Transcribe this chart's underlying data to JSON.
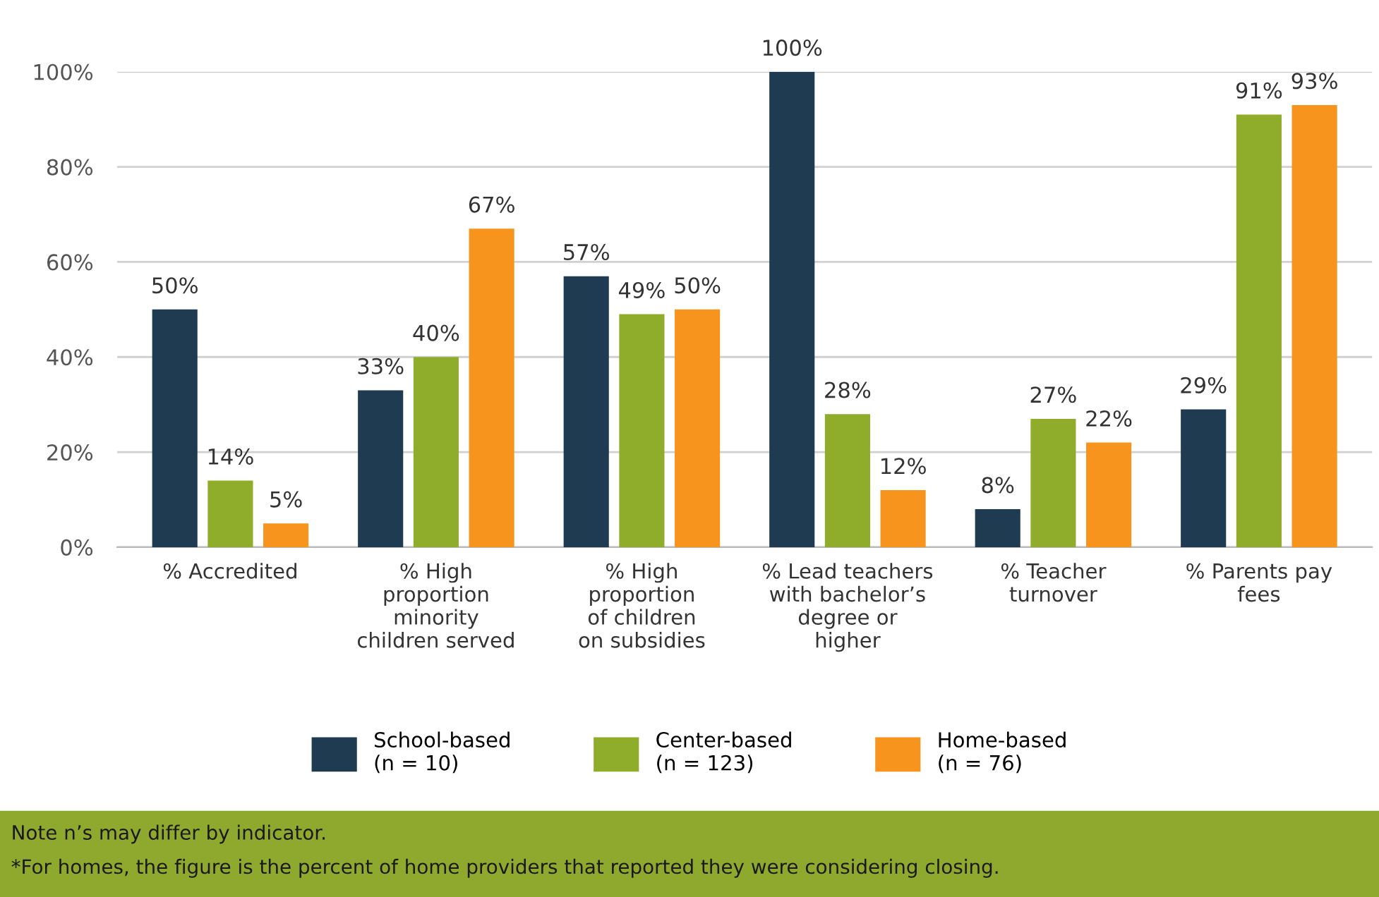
{
  "chart_data": {
    "type": "bar",
    "categories": [
      "% Accredited",
      "% High\nproportion\nminority\nchildren served",
      "% High\nproportion\nof children\non subsidies",
      "% Lead teachers\nwith bachelor’s\ndegree or\nhigher",
      "% Teacher\nturnover",
      "% Parents pay\nfees"
    ],
    "series": [
      {
        "name": "School-based\n(n = 10)",
        "color": "#1f3b52",
        "values": [
          50,
          33,
          57,
          100,
          8,
          29
        ]
      },
      {
        "name": "Center-based\n(n = 123)",
        "color": "#8fad2b",
        "values": [
          14,
          40,
          49,
          28,
          27,
          91
        ]
      },
      {
        "name": "Home-based\n(n = 76)",
        "color": "#f7941d",
        "values": [
          5,
          67,
          50,
          12,
          22,
          93
        ]
      }
    ],
    "ylim": [
      0,
      100
    ],
    "yticks": [
      {
        "value": 0,
        "label": "0%"
      },
      {
        "value": 20,
        "label": "20%"
      },
      {
        "value": 40,
        "label": "40%"
      },
      {
        "value": 60,
        "label": "60%"
      },
      {
        "value": 80,
        "label": "80%"
      },
      {
        "value": 100,
        "label": "100%"
      }
    ],
    "value_labels": [
      [
        "50%",
        "33%",
        "57%",
        "100%",
        "8%",
        "29%"
      ],
      [
        "14%",
        "40%",
        "49%",
        "28%",
        "27%",
        "91%"
      ],
      [
        "5%",
        "67%",
        "50%",
        "12%",
        "22%",
        "93%"
      ]
    ],
    "grid": "y",
    "legend": "bottom",
    "annotations": [
      "Note n’s may differ by indicator.",
      "*For homes, the figure is the percent of home providers that reported they were considering closing."
    ]
  }
}
